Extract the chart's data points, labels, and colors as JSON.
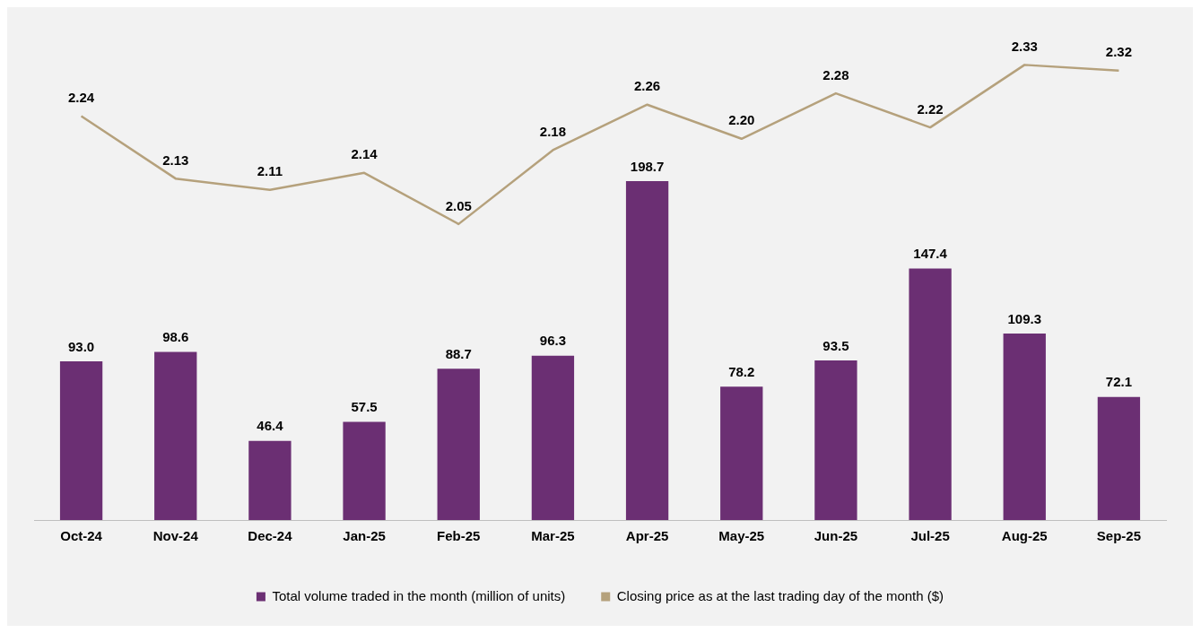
{
  "chart_data": {
    "type": "bar",
    "categories": [
      "Oct-24",
      "Nov-24",
      "Dec-24",
      "Jan-25",
      "Feb-25",
      "Mar-25",
      "Apr-25",
      "May-25",
      "Jun-25",
      "Jul-25",
      "Aug-25",
      "Sep-25"
    ],
    "series": [
      {
        "name": "Total volume traded in the month (million of units)",
        "color": "#6b2f73",
        "values": [
          93.0,
          98.6,
          46.4,
          57.5,
          88.7,
          96.3,
          198.7,
          78.2,
          93.5,
          147.4,
          109.3,
          72.1
        ],
        "value_labels": [
          "93.0",
          "98.6",
          "46.4",
          "57.5",
          "88.7",
          "96.3",
          "198.7",
          "78.2",
          "93.5",
          "147.4",
          "109.3",
          "72.1"
        ]
      },
      {
        "name": "Closing price as at the last trading day of the month ($)",
        "type": "line",
        "axis": "y2",
        "color": "#b5a17c",
        "values": [
          2.24,
          2.13,
          2.11,
          2.14,
          2.05,
          2.18,
          2.26,
          2.2,
          2.28,
          2.22,
          2.33,
          2.32
        ],
        "value_labels": [
          "2.24",
          "2.13",
          "2.11",
          "2.14",
          "2.05",
          "2.18",
          "2.26",
          "2.20",
          "2.28",
          "2.22",
          "2.33",
          "2.32"
        ]
      }
    ],
    "grid": false,
    "legend": "bottom",
    "tick_labels": "x",
    "marker": "none",
    "line_style": "solid"
  }
}
